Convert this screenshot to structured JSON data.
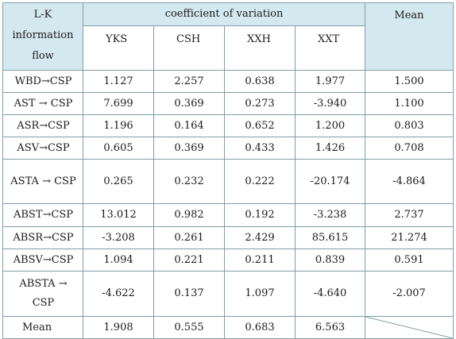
{
  "header": {
    "row_label": "L-K information flow",
    "group_label": "coefficient of variation",
    "columns": [
      "YKS",
      "CSH",
      "XXH",
      "XXT"
    ],
    "mean_label": "Mean"
  },
  "rows": [
    {
      "label": "WBD→CSP",
      "values": [
        "1.127",
        "2.257",
        "0.638",
        "1.977"
      ],
      "mean": "1.500"
    },
    {
      "label": "AST → CSP",
      "values": [
        "7.699",
        "0.369",
        "0.273",
        "-3.940"
      ],
      "mean": "1.100"
    },
    {
      "label": "ASR→CSP",
      "values": [
        "1.196",
        "0.164",
        "0.652",
        "1.200"
      ],
      "mean": "0.803"
    },
    {
      "label": "ASV→CSP",
      "values": [
        "0.605",
        "0.369",
        "0.433",
        "1.426"
      ],
      "mean": "0.708"
    },
    {
      "label": "ASTA → CSP",
      "values": [
        "0.265",
        "0.232",
        "0.222",
        "-20.174"
      ],
      "mean": "-4.864"
    },
    {
      "label": "ABST→CSP",
      "values": [
        "13.012",
        "0.982",
        "0.192",
        "-3.238"
      ],
      "mean": "2.737"
    },
    {
      "label": "ABSR→CSP",
      "values": [
        "-3.208",
        "0.261",
        "2.429",
        "85.615"
      ],
      "mean": "21.274"
    },
    {
      "label": "ABSV→CSP",
      "values": [
        "1.094",
        "0.221",
        "0.211",
        "0.839"
      ],
      "mean": "0.591"
    },
    {
      "label": "ABSTA → CSP",
      "values": [
        "-4.622",
        "0.137",
        "1.097",
        "-4.640"
      ],
      "mean": "-2.007"
    }
  ],
  "footer": {
    "label": "Mean",
    "values": [
      "1.908",
      "0.555",
      "0.683",
      "6.563"
    ]
  },
  "colors": {
    "header_background": "#d4e9ef",
    "border": "#7f9fa8"
  }
}
